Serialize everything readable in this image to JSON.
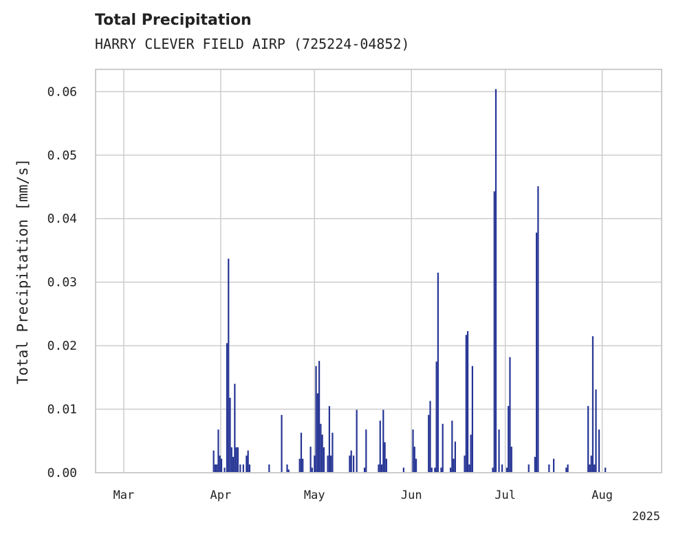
{
  "chart_data": {
    "type": "bar",
    "title": "Total Precipitation",
    "subtitle": "HARRY CLEVER FIELD AIRP (725224-04852)",
    "ylabel": "Total Precipitation [mm/s]",
    "xlabel": "",
    "year_label": "2025",
    "x_range": [
      "2025-02-20",
      "2025-08-20"
    ],
    "ylim": [
      0,
      0.0635
    ],
    "grid": true,
    "bar_color": "#253494",
    "y_ticks": [
      {
        "value": 0.0,
        "label": "0.00"
      },
      {
        "value": 0.01,
        "label": "0.01"
      },
      {
        "value": 0.02,
        "label": "0.02"
      },
      {
        "value": 0.03,
        "label": "0.03"
      },
      {
        "value": 0.04,
        "label": "0.04"
      },
      {
        "value": 0.05,
        "label": "0.05"
      },
      {
        "value": 0.06,
        "label": "0.06"
      }
    ],
    "x_ticks": [
      {
        "date": "2025-03-01",
        "label": "Mar"
      },
      {
        "date": "2025-04-01",
        "label": "Apr"
      },
      {
        "date": "2025-05-01",
        "label": "May"
      },
      {
        "date": "2025-06-01",
        "label": "Jun"
      },
      {
        "date": "2025-07-01",
        "label": "Jul"
      },
      {
        "date": "2025-08-01",
        "label": "Aug"
      }
    ],
    "points": [
      [
        "2025-03-29T18:00",
        0.0035
      ],
      [
        "2025-03-30T06:00",
        0.0013
      ],
      [
        "2025-03-30T18:00",
        0.0013
      ],
      [
        "2025-03-31T06:00",
        0.0068
      ],
      [
        "2025-03-31T18:00",
        0.0027
      ],
      [
        "2025-04-01T06:00",
        0.0022
      ],
      [
        "2025-04-02T06:00",
        0.0008
      ],
      [
        "2025-04-03T00:00",
        0.0204
      ],
      [
        "2025-04-03T12:00",
        0.0337
      ],
      [
        "2025-04-04T00:00",
        0.0118
      ],
      [
        "2025-04-04T12:00",
        0.004
      ],
      [
        "2025-04-05T00:00",
        0.0025
      ],
      [
        "2025-04-05T12:00",
        0.014
      ],
      [
        "2025-04-06T00:00",
        0.004
      ],
      [
        "2025-04-06T12:00",
        0.004
      ],
      [
        "2025-04-07T06:00",
        0.0013
      ],
      [
        "2025-04-08T06:00",
        0.0013
      ],
      [
        "2025-04-09T06:00",
        0.0027
      ],
      [
        "2025-04-09T18:00",
        0.0035
      ],
      [
        "2025-04-10T06:00",
        0.0013
      ],
      [
        "2025-04-16T12:00",
        0.0013
      ],
      [
        "2025-04-20T12:00",
        0.0091
      ],
      [
        "2025-04-22T06:00",
        0.0013
      ],
      [
        "2025-04-22T18:00",
        0.0005
      ],
      [
        "2025-04-26T06:00",
        0.0022
      ],
      [
        "2025-04-26T18:00",
        0.0063
      ],
      [
        "2025-04-27T06:00",
        0.0022
      ],
      [
        "2025-04-29T18:00",
        0.0041
      ],
      [
        "2025-04-30T06:00",
        0.0008
      ],
      [
        "2025-05-01T00:00",
        0.0027
      ],
      [
        "2025-05-01T12:00",
        0.0168
      ],
      [
        "2025-05-02T00:00",
        0.0125
      ],
      [
        "2025-05-02T12:00",
        0.0176
      ],
      [
        "2025-05-03T00:00",
        0.0077
      ],
      [
        "2025-05-03T12:00",
        0.006
      ],
      [
        "2025-05-04T00:00",
        0.004
      ],
      [
        "2025-05-05T06:00",
        0.0027
      ],
      [
        "2025-05-05T18:00",
        0.0105
      ],
      [
        "2025-05-06T06:00",
        0.0027
      ],
      [
        "2025-05-06T18:00",
        0.0063
      ],
      [
        "2025-05-12T06:00",
        0.0027
      ],
      [
        "2025-05-12T18:00",
        0.0035
      ],
      [
        "2025-05-13T12:00",
        0.0027
      ],
      [
        "2025-05-14T12:00",
        0.0099
      ],
      [
        "2025-05-17T00:00",
        0.0008
      ],
      [
        "2025-05-17T12:00",
        0.0068
      ],
      [
        "2025-05-21T12:00",
        0.0013
      ],
      [
        "2025-05-22T00:00",
        0.0082
      ],
      [
        "2025-05-22T12:00",
        0.0013
      ],
      [
        "2025-05-23T00:00",
        0.0099
      ],
      [
        "2025-05-23T12:00",
        0.0048
      ],
      [
        "2025-05-24T00:00",
        0.0022
      ],
      [
        "2025-05-29T12:00",
        0.0008
      ],
      [
        "2025-06-01T12:00",
        0.0068
      ],
      [
        "2025-06-02T00:00",
        0.0041
      ],
      [
        "2025-06-02T12:00",
        0.0022
      ],
      [
        "2025-06-06T12:00",
        0.0091
      ],
      [
        "2025-06-07T00:00",
        0.0113
      ],
      [
        "2025-06-07T12:00",
        0.0008
      ],
      [
        "2025-06-08T12:00",
        0.0008
      ],
      [
        "2025-06-09T00:00",
        0.0175
      ],
      [
        "2025-06-09T12:00",
        0.0315
      ],
      [
        "2025-06-10T12:00",
        0.0008
      ],
      [
        "2025-06-11T00:00",
        0.0077
      ],
      [
        "2025-06-13T12:00",
        0.0008
      ],
      [
        "2025-06-14T00:00",
        0.0082
      ],
      [
        "2025-06-14T12:00",
        0.0022
      ],
      [
        "2025-06-15T00:00",
        0.0049
      ],
      [
        "2025-06-18T00:00",
        0.0027
      ],
      [
        "2025-06-18T12:00",
        0.0217
      ],
      [
        "2025-06-19T00:00",
        0.0223
      ],
      [
        "2025-06-19T12:00",
        0.0013
      ],
      [
        "2025-06-20T00:00",
        0.006
      ],
      [
        "2025-06-20T12:00",
        0.0168
      ],
      [
        "2025-06-27T00:00",
        0.0008
      ],
      [
        "2025-06-27T12:00",
        0.0443
      ],
      [
        "2025-06-28T00:00",
        0.0604
      ],
      [
        "2025-06-29T00:00",
        0.0068
      ],
      [
        "2025-06-30T00:00",
        0.0013
      ],
      [
        "2025-07-01T12:00",
        0.0008
      ],
      [
        "2025-07-02T00:00",
        0.0105
      ],
      [
        "2025-07-02T12:00",
        0.0182
      ],
      [
        "2025-07-03T00:00",
        0.0041
      ],
      [
        "2025-07-08T12:00",
        0.0013
      ],
      [
        "2025-07-10T12:00",
        0.0025
      ],
      [
        "2025-07-11T00:00",
        0.0378
      ],
      [
        "2025-07-11T12:00",
        0.0451
      ],
      [
        "2025-07-15T00:00",
        0.0013
      ],
      [
        "2025-07-16T12:00",
        0.0022
      ],
      [
        "2025-07-20T12:00",
        0.0008
      ],
      [
        "2025-07-21T00:00",
        0.0013
      ],
      [
        "2025-07-27T12:00",
        0.0105
      ],
      [
        "2025-07-28T00:00",
        0.0013
      ],
      [
        "2025-07-28T12:00",
        0.0027
      ],
      [
        "2025-07-29T00:00",
        0.0215
      ],
      [
        "2025-07-29T12:00",
        0.0013
      ],
      [
        "2025-07-30T00:00",
        0.0131
      ],
      [
        "2025-07-31T00:00",
        0.0068
      ],
      [
        "2025-08-02T00:00",
        0.0008
      ]
    ]
  }
}
